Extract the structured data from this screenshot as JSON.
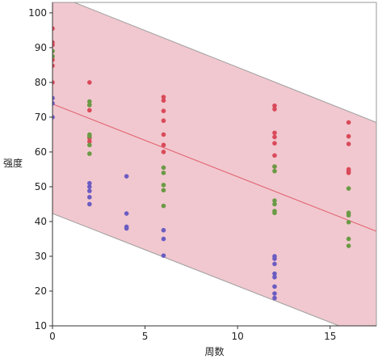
{
  "chart_data": {
    "type": "scatter",
    "title": "",
    "xlabel": "周数",
    "ylabel": "强度",
    "xlim": [
      0,
      17.5
    ],
    "ylim": [
      10,
      103
    ],
    "x_ticks": [
      0,
      5,
      10,
      15
    ],
    "y_ticks": [
      10,
      20,
      30,
      40,
      50,
      60,
      70,
      80,
      90,
      100
    ],
    "grid": false,
    "colors": {
      "band_fill": "#f1c8cf",
      "band_edge": "#9e9e9e",
      "fit_line": "#e0606e",
      "red": "#d94a5a",
      "green": "#6a9a45",
      "purple": "#6b5cc2"
    },
    "fit_line": {
      "x": [
        0,
        17.5
      ],
      "y": [
        73.8,
        37.2
      ]
    },
    "prediction_band": {
      "upper": {
        "x": [
          0,
          17.5
        ],
        "y": [
          105.5,
          68.5
        ]
      },
      "lower": {
        "x": [
          0,
          17.5
        ],
        "y": [
          42.3,
          5.8
        ]
      }
    },
    "series": [
      {
        "color": "red",
        "points": [
          [
            0,
            95.5
          ],
          [
            0,
            91.5
          ],
          [
            0,
            90.8
          ],
          [
            0,
            86.5
          ],
          [
            0,
            84.8
          ],
          [
            0,
            80.0
          ],
          [
            2,
            80.0
          ],
          [
            2,
            73.5
          ],
          [
            2,
            72.0
          ],
          [
            2,
            64.0
          ],
          [
            2,
            63.0
          ],
          [
            6,
            75.8
          ],
          [
            6,
            74.8
          ],
          [
            6,
            71.8
          ],
          [
            6,
            69.0
          ],
          [
            6,
            65.0
          ],
          [
            6,
            62.0
          ],
          [
            6,
            60.0
          ],
          [
            12,
            73.3
          ],
          [
            12,
            72.3
          ],
          [
            12,
            65.5
          ],
          [
            12,
            64.3
          ],
          [
            12,
            62.5
          ],
          [
            12,
            59.0
          ],
          [
            12,
            55.8
          ],
          [
            16,
            68.5
          ],
          [
            16,
            64.5
          ],
          [
            16,
            62.3
          ],
          [
            16,
            55.0
          ],
          [
            16,
            54.5
          ],
          [
            16,
            54.0
          ]
        ]
      },
      {
        "color": "green",
        "points": [
          [
            0,
            89.0
          ],
          [
            0,
            87.5
          ],
          [
            2,
            74.5
          ],
          [
            2,
            73.5
          ],
          [
            2,
            65.0
          ],
          [
            2,
            64.5
          ],
          [
            2,
            62.0
          ],
          [
            2,
            59.5
          ],
          [
            6,
            55.5
          ],
          [
            6,
            54.0
          ],
          [
            6,
            50.5
          ],
          [
            6,
            49.0
          ],
          [
            6,
            44.5
          ],
          [
            12,
            55.8
          ],
          [
            12,
            54.5
          ],
          [
            12,
            46.0
          ],
          [
            12,
            45.0
          ],
          [
            12,
            43.0
          ],
          [
            12,
            42.5
          ],
          [
            16,
            49.5
          ],
          [
            16,
            42.5
          ],
          [
            16,
            41.8
          ],
          [
            16,
            39.8
          ],
          [
            16,
            35.0
          ],
          [
            16,
            33.0
          ]
        ]
      },
      {
        "color": "purple",
        "points": [
          [
            0,
            75.5
          ],
          [
            0,
            74.0
          ],
          [
            0,
            70.0
          ],
          [
            2,
            51.0
          ],
          [
            2,
            50.0
          ],
          [
            2,
            48.8
          ],
          [
            2,
            47.0
          ],
          [
            2,
            45.0
          ],
          [
            4,
            53.0
          ],
          [
            4,
            42.3
          ],
          [
            4,
            38.5
          ],
          [
            4,
            38.0
          ],
          [
            6,
            37.5
          ],
          [
            6,
            35.0
          ],
          [
            6,
            30.2
          ],
          [
            12,
            30.0
          ],
          [
            12,
            29.3
          ],
          [
            12,
            27.8
          ],
          [
            12,
            25.0
          ],
          [
            12,
            24.0
          ],
          [
            12,
            21.3
          ],
          [
            12,
            19.3
          ],
          [
            12,
            18.0
          ]
        ]
      }
    ]
  }
}
